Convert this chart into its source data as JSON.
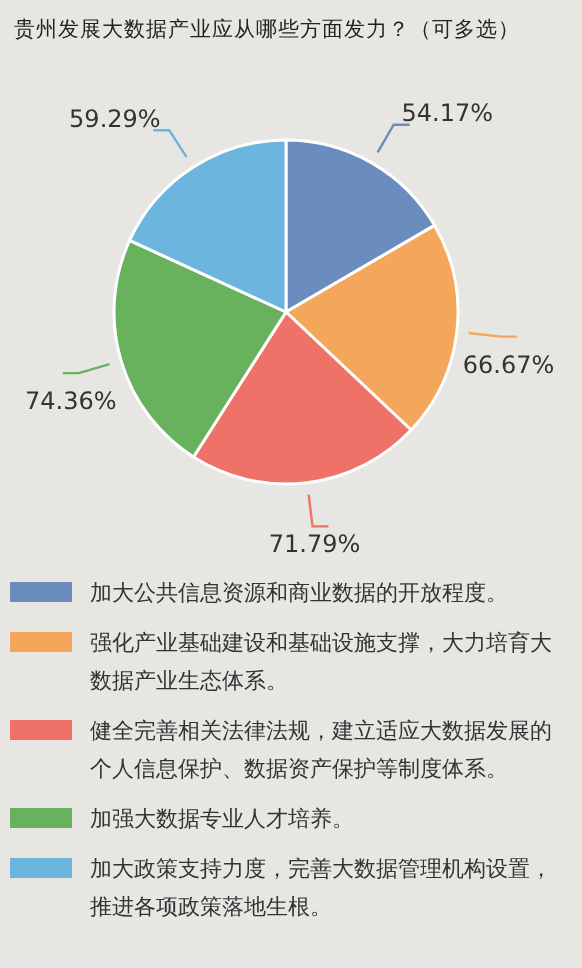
{
  "chart_data": {
    "type": "pie",
    "title": "贵州发展大数据产业应从哪些方面发力？（可多选）",
    "categories": [
      "加大公共信息资源和商业数据的开放程度。",
      "强化产业基础建设和基础设施支撑，大力培育大数据产业生态体系。",
      "健全完善相关法律法规，建立适应大数据发展的个人信息保护、数据资产保护等制度体系。",
      "加强大数据专业人才培养。",
      "加大政策支持力度，完善大数据管理机构设置，推进各项政策落地生根。"
    ],
    "values": [
      54.17,
      66.67,
      71.79,
      74.36,
      59.29
    ],
    "value_labels": [
      "54.17%",
      "66.67%",
      "71.79%",
      "74.36%",
      "59.29%"
    ],
    "colors": [
      "#6b8cbf",
      "#f4a65a",
      "#ee7268",
      "#68b25e",
      "#6bb5de"
    ],
    "legend": "bottom"
  }
}
